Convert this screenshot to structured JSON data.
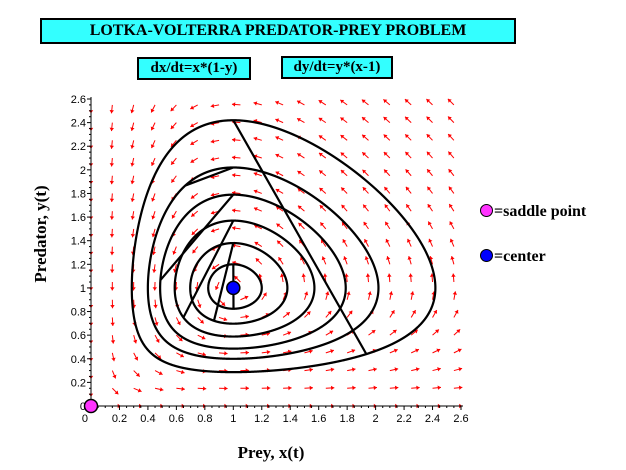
{
  "header": {
    "title": "LOTKA-VOLTERRA PREDATOR-PREY PROBLEM",
    "equation_x": "dx/dt=x*(1-y)",
    "equation_y": "dy/dt=y*(x-1)"
  },
  "legend": {
    "saddle_label": "=saddle point",
    "center_label": "=center"
  },
  "colors": {
    "banner": "#33ffff",
    "field_arrows": "#ff0000",
    "trajectories": "#000000",
    "saddle": "#ff33ff",
    "center": "#0000ff"
  },
  "chart_data": {
    "type": "scatter",
    "title": "LOTKA-VOLTERRA PREDATOR-PREY PROBLEM",
    "xlabel": "Prey, x(t)",
    "ylabel": "Predator, y(t)",
    "xlim": [
      0,
      2.6
    ],
    "ylim": [
      0,
      2.6
    ],
    "x_ticks": [
      0,
      0.2,
      0.4,
      0.6,
      0.8,
      1,
      1.2,
      1.4,
      1.6,
      1.8,
      2,
      2.2,
      2.4,
      2.6
    ],
    "y_ticks": [
      0,
      0.2,
      0.4,
      0.6,
      0.8,
      1,
      1.2,
      1.4,
      1.6,
      1.8,
      2,
      2.2,
      2.4,
      2.6
    ],
    "x_tick_labels": [
      "0",
      "0.2",
      "0.4",
      "0.6",
      "0.8",
      "1",
      "1.2",
      "1.4",
      "1.6",
      "1.8",
      "2",
      "2.2",
      "2.4",
      "2.6"
    ],
    "y_tick_labels": [
      "0",
      "0.2",
      "0.4",
      "0.6",
      "0.8",
      "1",
      "1.2",
      "1.4",
      "1.6",
      "1.8",
      "2",
      "2.2",
      "2.4",
      "2.6"
    ],
    "grid": false,
    "direction_field": {
      "dx": "x*(1-y)",
      "dy": "y*(x-1)",
      "x_range": [
        0,
        2.55
      ],
      "y_range": [
        0,
        2.55
      ],
      "spacing": 0.15
    },
    "trajectories": [
      {
        "x0": 1.0,
        "y0": 2.42
      },
      {
        "x0": 1.0,
        "y0": 2.02
      },
      {
        "x0": 1.0,
        "y0": 1.79
      },
      {
        "x0": 1.0,
        "y0": 1.57
      },
      {
        "x0": 1.0,
        "y0": 1.38
      },
      {
        "x0": 1.0,
        "y0": 1.2
      }
    ],
    "equilibria": [
      {
        "x": 0,
        "y": 0,
        "kind": "saddle point"
      },
      {
        "x": 1,
        "y": 1,
        "kind": "center"
      }
    ]
  }
}
